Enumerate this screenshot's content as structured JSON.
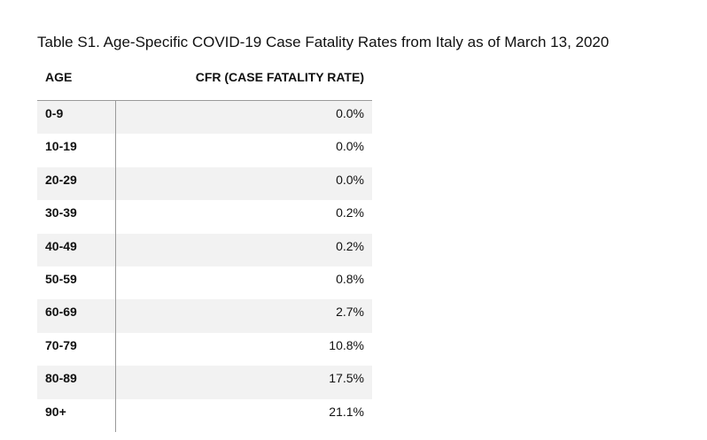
{
  "table": {
    "title": "Table S1. Age-Specific COVID-19 Case Fatality Rates from Italy as of March 13, 2020",
    "header": [
      "AGE",
      "CFR (CASE FATALITY RATE)"
    ],
    "rows": [
      [
        "0-9",
        "0.0%"
      ],
      [
        "10-19",
        "0.0%"
      ],
      [
        "20-29",
        "0.0%"
      ],
      [
        "30-39",
        "0.2%"
      ],
      [
        "40-49",
        "0.2%"
      ],
      [
        "50-59",
        "0.8%"
      ],
      [
        "60-69",
        "2.7%"
      ],
      [
        "70-79",
        "10.8%"
      ],
      [
        "80-89",
        "17.5%"
      ],
      [
        "90+",
        "21.1%"
      ]
    ]
  }
}
